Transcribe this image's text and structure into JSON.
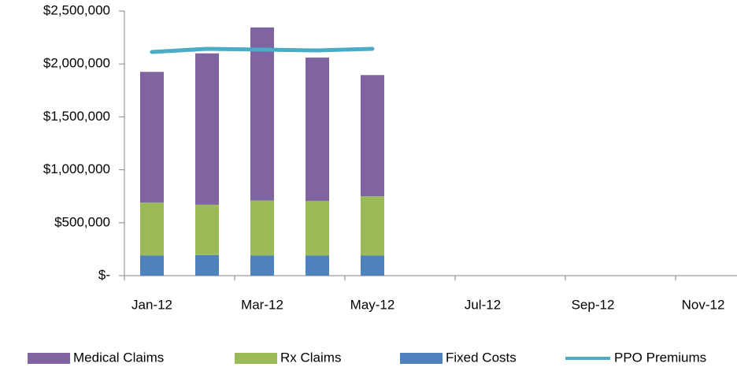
{
  "chart_data": {
    "type": "bar",
    "categories": [
      "Jan-12",
      null,
      "Mar-12",
      null,
      "May-12",
      null,
      "Jul-12",
      null,
      "Sep-12",
      null,
      "Nov-12"
    ],
    "series": [
      {
        "name": "Medical Claims",
        "type": "bar",
        "color": "#8064a2",
        "values": [
          1235000,
          1430000,
          1635000,
          1355000,
          1145000,
          null,
          null,
          null,
          null,
          null,
          null
        ]
      },
      {
        "name": "Rx Claims",
        "type": "bar",
        "color": "#9bbb59",
        "values": [
          500000,
          475000,
          520000,
          515000,
          560000,
          null,
          null,
          null,
          null,
          null,
          null
        ]
      },
      {
        "name": "Fixed Costs",
        "type": "bar",
        "color": "#4f81bd",
        "values": [
          190000,
          195000,
          190000,
          190000,
          190000,
          null,
          null,
          null,
          null,
          null,
          null
        ]
      },
      {
        "name": "PPO Premiums",
        "type": "line",
        "color": "#4bacc6",
        "values": [
          2113000,
          2143000,
          2135000,
          2128000,
          2143000,
          null,
          null,
          null,
          null,
          null,
          null
        ]
      }
    ],
    "stacked": true,
    "ylim": [
      0,
      2500000
    ],
    "yticks": [
      {
        "value": 0,
        "label": "$-"
      },
      {
        "value": 500000,
        "label": "$500,000"
      },
      {
        "value": 1000000,
        "label": "$1,000,000"
      },
      {
        "value": 1500000,
        "label": "$1,500,000"
      },
      {
        "value": 2000000,
        "label": "$2,000,000"
      },
      {
        "value": 2500000,
        "label": "$2,500,000"
      }
    ],
    "grid": false,
    "legend": "bottom"
  }
}
